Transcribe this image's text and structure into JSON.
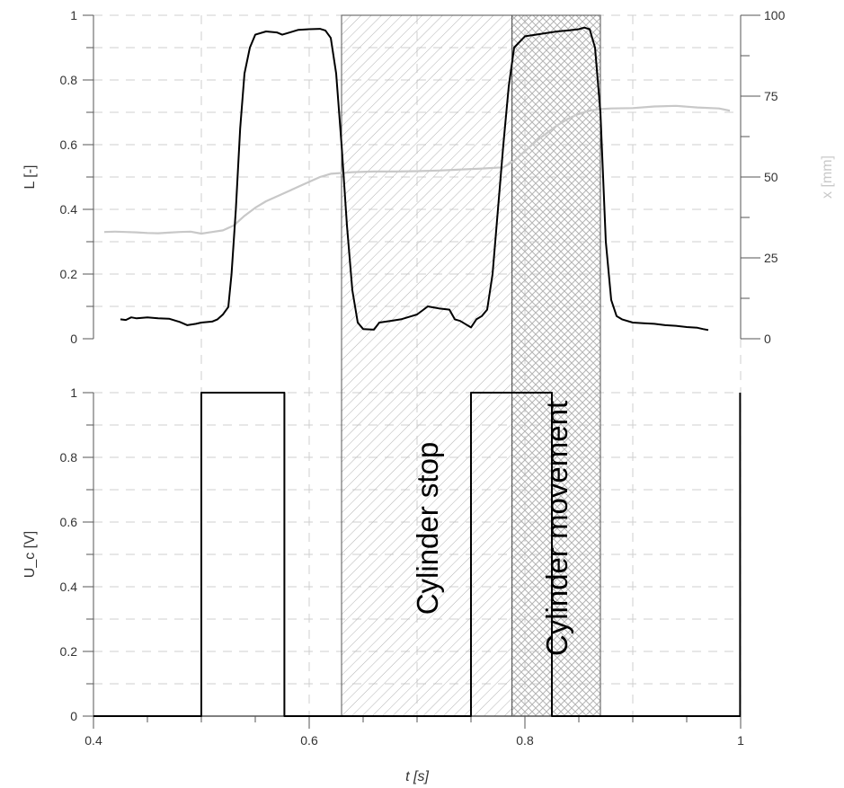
{
  "chart_data": [
    {
      "type": "line",
      "panel": "top",
      "xlabel": "",
      "ylabel_left": "L [-]",
      "ylabel_right": "x [mm]",
      "xlim": [
        0.4,
        1.0
      ],
      "ylim_left": [
        0,
        1
      ],
      "ylim_right": [
        0,
        100
      ],
      "yticks_left": [
        "0",
        "0.2",
        "0.4",
        "0.6",
        "0.8",
        "1"
      ],
      "yticks_right": [
        "0",
        "25",
        "50",
        "75",
        "100"
      ],
      "grid": true,
      "series": [
        {
          "axis": "left",
          "color": "#000000",
          "points": [
            [
              0.425,
              0.06
            ],
            [
              0.43,
              0.058
            ],
            [
              0.435,
              0.066
            ],
            [
              0.44,
              0.063
            ],
            [
              0.45,
              0.066
            ],
            [
              0.46,
              0.063
            ],
            [
              0.47,
              0.062
            ],
            [
              0.48,
              0.052
            ],
            [
              0.487,
              0.042
            ],
            [
              0.495,
              0.046
            ],
            [
              0.5,
              0.05
            ],
            [
              0.51,
              0.053
            ],
            [
              0.515,
              0.06
            ],
            [
              0.52,
              0.075
            ],
            [
              0.525,
              0.098
            ],
            [
              0.528,
              0.2
            ],
            [
              0.532,
              0.4
            ],
            [
              0.536,
              0.65
            ],
            [
              0.54,
              0.82
            ],
            [
              0.545,
              0.9
            ],
            [
              0.55,
              0.94
            ],
            [
              0.56,
              0.95
            ],
            [
              0.57,
              0.947
            ],
            [
              0.575,
              0.94
            ],
            [
              0.58,
              0.945
            ],
            [
              0.59,
              0.955
            ],
            [
              0.6,
              0.957
            ],
            [
              0.61,
              0.958
            ],
            [
              0.615,
              0.953
            ],
            [
              0.62,
              0.93
            ],
            [
              0.625,
              0.82
            ],
            [
              0.63,
              0.6
            ],
            [
              0.635,
              0.35
            ],
            [
              0.64,
              0.15
            ],
            [
              0.645,
              0.05
            ],
            [
              0.65,
              0.03
            ],
            [
              0.66,
              0.028
            ],
            [
              0.665,
              0.05
            ],
            [
              0.675,
              0.055
            ],
            [
              0.685,
              0.06
            ],
            [
              0.695,
              0.07
            ],
            [
              0.7,
              0.075
            ],
            [
              0.71,
              0.1
            ],
            [
              0.715,
              0.097
            ],
            [
              0.72,
              0.094
            ],
            [
              0.73,
              0.09
            ],
            [
              0.735,
              0.06
            ],
            [
              0.74,
              0.055
            ],
            [
              0.745,
              0.045
            ],
            [
              0.75,
              0.035
            ],
            [
              0.755,
              0.06
            ],
            [
              0.76,
              0.07
            ],
            [
              0.765,
              0.09
            ],
            [
              0.77,
              0.2
            ],
            [
              0.775,
              0.4
            ],
            [
              0.78,
              0.6
            ],
            [
              0.785,
              0.78
            ],
            [
              0.79,
              0.9
            ],
            [
              0.8,
              0.935
            ],
            [
              0.81,
              0.94
            ],
            [
              0.82,
              0.945
            ],
            [
              0.83,
              0.95
            ],
            [
              0.84,
              0.953
            ],
            [
              0.85,
              0.957
            ],
            [
              0.855,
              0.962
            ],
            [
              0.86,
              0.957
            ],
            [
              0.865,
              0.9
            ],
            [
              0.87,
              0.7
            ],
            [
              0.875,
              0.3
            ],
            [
              0.88,
              0.12
            ],
            [
              0.885,
              0.07
            ],
            [
              0.89,
              0.06
            ],
            [
              0.9,
              0.05
            ],
            [
              0.91,
              0.048
            ],
            [
              0.92,
              0.046
            ],
            [
              0.93,
              0.042
            ],
            [
              0.94,
              0.04
            ],
            [
              0.95,
              0.036
            ],
            [
              0.96,
              0.034
            ],
            [
              0.965,
              0.03
            ],
            [
              0.97,
              0.027
            ]
          ]
        },
        {
          "axis": "right",
          "color": "#c8c8c8",
          "points": [
            [
              0.41,
              33
            ],
            [
              0.42,
              33.1
            ],
            [
              0.43,
              33
            ],
            [
              0.44,
              32.9
            ],
            [
              0.45,
              32.7
            ],
            [
              0.46,
              32.6
            ],
            [
              0.47,
              32.8
            ],
            [
              0.48,
              33
            ],
            [
              0.49,
              33.1
            ],
            [
              0.5,
              32.5
            ],
            [
              0.51,
              33
            ],
            [
              0.52,
              33.5
            ],
            [
              0.53,
              35
            ],
            [
              0.54,
              38
            ],
            [
              0.55,
              40.5
            ],
            [
              0.56,
              42.5
            ],
            [
              0.57,
              44
            ],
            [
              0.58,
              45.5
            ],
            [
              0.59,
              47
            ],
            [
              0.6,
              48.5
            ],
            [
              0.61,
              50
            ],
            [
              0.62,
              51
            ],
            [
              0.64,
              51.5
            ],
            [
              0.66,
              51.7
            ],
            [
              0.68,
              51.7
            ],
            [
              0.7,
              51.8
            ],
            [
              0.72,
              52
            ],
            [
              0.74,
              52.3
            ],
            [
              0.76,
              52.6
            ],
            [
              0.78,
              53
            ],
            [
              0.79,
              55
            ],
            [
              0.8,
              58
            ],
            [
              0.81,
              61
            ],
            [
              0.82,
              63.5
            ],
            [
              0.83,
              66
            ],
            [
              0.84,
              68
            ],
            [
              0.85,
              69.5
            ],
            [
              0.86,
              70.5
            ],
            [
              0.87,
              71
            ],
            [
              0.88,
              71.2
            ],
            [
              0.9,
              71.3
            ],
            [
              0.92,
              71.8
            ],
            [
              0.94,
              72
            ],
            [
              0.96,
              71.5
            ],
            [
              0.98,
              71.2
            ],
            [
              0.99,
              70.5
            ]
          ]
        }
      ]
    },
    {
      "type": "line",
      "panel": "bottom",
      "xlabel": "t [s]",
      "ylabel": "U_c [V]",
      "xlim": [
        0.4,
        1.0
      ],
      "ylim": [
        0,
        1
      ],
      "xticks": [
        "0.4",
        "0.6",
        "0.8",
        "1"
      ],
      "yticks": [
        "0",
        "0.2",
        "0.4",
        "0.6",
        "0.8",
        "1"
      ],
      "grid": true,
      "series": [
        {
          "color": "#000000",
          "points": [
            [
              0.4,
              0
            ],
            [
              0.5,
              0
            ],
            [
              0.5,
              1
            ],
            [
              0.577,
              1
            ],
            [
              0.577,
              0
            ],
            [
              0.75,
              0
            ],
            [
              0.75,
              1
            ],
            [
              0.825,
              1
            ],
            [
              0.825,
              0
            ],
            [
              0.9995,
              0
            ],
            [
              0.9995,
              1
            ]
          ]
        }
      ]
    }
  ],
  "regions": [
    {
      "label": "Cylinder stop",
      "t_start": 0.63,
      "t_end": 0.788,
      "pattern": "single-hatch"
    },
    {
      "label": "Cylinder movement",
      "t_start": 0.788,
      "t_end": 0.87,
      "pattern": "cross-hatch"
    }
  ]
}
